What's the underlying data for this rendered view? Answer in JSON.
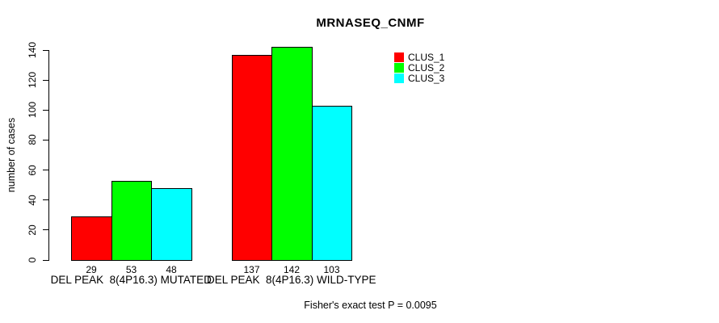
{
  "chart_data": {
    "type": "bar",
    "title": "MRNASEQ_CNMF",
    "ylabel": "number of cases",
    "xlabel": "",
    "ylim": [
      0,
      140
    ],
    "yticks": [
      0,
      20,
      40,
      60,
      80,
      100,
      120,
      140
    ],
    "grid": false,
    "categories": [
      "DEL PEAK  8(4P16.3) MUTATED",
      "DEL PEAK  8(4P16.3) WILD-TYPE"
    ],
    "series": [
      {
        "name": "CLUS_1",
        "color": "#ff0000",
        "values": [
          29,
          137
        ]
      },
      {
        "name": "CLUS_2",
        "color": "#00ff00",
        "values": [
          53,
          142
        ]
      },
      {
        "name": "CLUS_3",
        "color": "#00ffff",
        "values": [
          48,
          103
        ]
      }
    ],
    "bar_value_labels": [
      [
        29,
        53,
        48
      ],
      [
        137,
        142,
        103
      ]
    ],
    "legend": {
      "position": "top-right",
      "entries": [
        "CLUS_1",
        "CLUS_2",
        "CLUS_3"
      ]
    },
    "footer": "Fisher's exact test P = 0.0095",
    "axis_color": "#000000",
    "bar_border_color": "#000000",
    "background_color": "#ffffff"
  }
}
